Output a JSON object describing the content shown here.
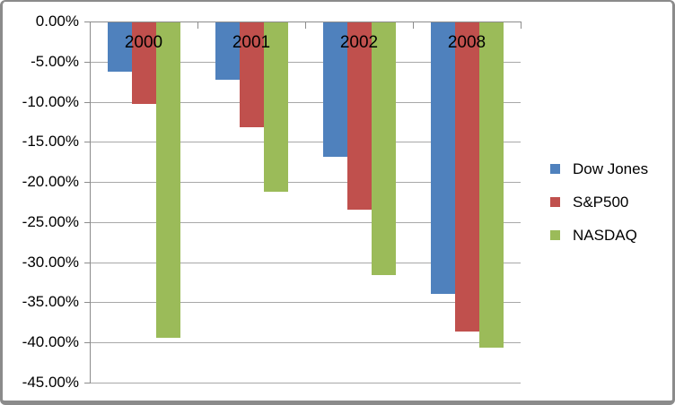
{
  "chart_data": {
    "type": "bar",
    "title": "",
    "categories": [
      "2000",
      "2001",
      "2002",
      "2008"
    ],
    "series": [
      {
        "name": "Dow Jones",
        "color": "#4F81BD",
        "values": [
          -6.17,
          -7.1,
          -16.76,
          -33.84
        ]
      },
      {
        "name": "S&P500",
        "color": "#C0504D",
        "values": [
          -10.14,
          -13.04,
          -23.37,
          -38.49
        ]
      },
      {
        "name": "NASDAQ",
        "color": "#9BBB59",
        "values": [
          -39.29,
          -21.05,
          -31.53,
          -40.54
        ]
      }
    ],
    "y_axis": {
      "min": -45,
      "max": 0,
      "step": 5,
      "tick_labels": [
        "0.00%",
        "-5.00%",
        "-10.00%",
        "-15.00%",
        "-20.00%",
        "-25.00%",
        "-30.00%",
        "-35.00%",
        "-40.00%",
        "-45.00%"
      ],
      "format": "percent"
    },
    "xlabel": "",
    "ylabel": "",
    "ylim": [
      -45,
      0
    ],
    "grid": true,
    "legend": {
      "position": "right",
      "entries": [
        "Dow Jones",
        "S&P500",
        "NASDAQ"
      ]
    },
    "colors": {
      "gridline": "#A8A8A8",
      "axis": "#8C8C8C",
      "frame_border": "#8B8B8B",
      "text": "#000000",
      "background": "#FFFFFF"
    }
  }
}
